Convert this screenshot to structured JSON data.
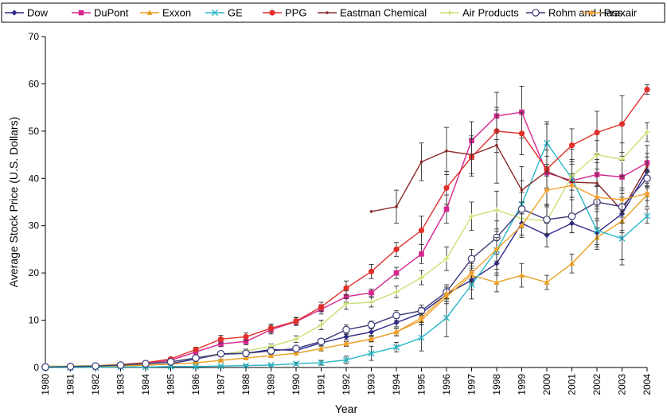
{
  "chart_data": {
    "type": "line",
    "title": "",
    "xlabel": "Year",
    "ylabel": "Average Stock Price (U.S. Dollars)",
    "ylim": [
      0,
      70
    ],
    "yticks": [
      0,
      10,
      20,
      30,
      40,
      50,
      60,
      70
    ],
    "x": [
      1980,
      1981,
      1982,
      1983,
      1984,
      1985,
      1986,
      1987,
      1988,
      1989,
      1990,
      1991,
      1992,
      1993,
      1994,
      1995,
      1996,
      1997,
      1998,
      1999,
      2000,
      2001,
      2002,
      2003,
      2004
    ],
    "legend_position": "top",
    "grid": false,
    "error_bars": true,
    "series": [
      {
        "name": "Dow",
        "color": "#2e2a8c",
        "marker": "diamond",
        "values": [
          0.1,
          0.1,
          0.2,
          0.3,
          0.5,
          0.8,
          1.8,
          2.8,
          3.0,
          3.8,
          3.6,
          5.2,
          6.5,
          7.5,
          9.5,
          11.5,
          15.5,
          18.5,
          22,
          30.5,
          28,
          30.5,
          28.5,
          32.5,
          41.5
        ],
        "errors": [
          0,
          0,
          0,
          0,
          0,
          0.2,
          0.3,
          0.4,
          0.4,
          0.5,
          0.5,
          0.6,
          0.6,
          0.7,
          0.9,
          1.2,
          1.5,
          2.0,
          2.5,
          2.5,
          2.5,
          2.0,
          2.5,
          3.5,
          3.0
        ]
      },
      {
        "name": "DuPont",
        "color": "#d6268f",
        "marker": "square",
        "values": [
          0.2,
          0.2,
          0.3,
          0.5,
          0.9,
          1.5,
          3.3,
          5.0,
          5.5,
          8.0,
          9.7,
          12.3,
          15.0,
          15.8,
          20.0,
          24.0,
          33.5,
          48.0,
          53.2,
          54.0,
          41.2,
          39.5,
          40.8,
          40.3,
          43.3
        ],
        "errors": [
          0,
          0,
          0,
          0,
          0,
          0.2,
          0.5,
          0.6,
          0.7,
          0.9,
          0.8,
          1.0,
          1.2,
          0.8,
          1.2,
          2.0,
          3.0,
          4.0,
          5.0,
          5.5,
          3.5,
          3.5,
          2.5,
          3.5,
          2.0
        ]
      },
      {
        "name": "Exxon",
        "color": "#e8a020",
        "marker": "triangle",
        "values": [
          0.1,
          0.1,
          0.2,
          0.3,
          0.5,
          0.7,
          1.0,
          1.5,
          2.0,
          2.5,
          3.0,
          4.0,
          5.0,
          6.0,
          7.5,
          10.0,
          15.0,
          19.5,
          18.0,
          19.5,
          18.0,
          22.0,
          27.5,
          31.0,
          36.5
        ],
        "errors": [
          0,
          0,
          0,
          0,
          0,
          0.1,
          0.2,
          0.2,
          0.3,
          0.3,
          0.4,
          0.5,
          0.5,
          0.6,
          0.8,
          1.0,
          1.5,
          2.0,
          2.0,
          2.5,
          1.5,
          2.0,
          2.0,
          2.5,
          2.5
        ]
      },
      {
        "name": "GE",
        "color": "#2ab8c8",
        "marker": "x",
        "values": [
          0.0,
          0.0,
          0.0,
          0.1,
          0.1,
          0.2,
          0.2,
          0.3,
          0.4,
          0.5,
          0.8,
          1.0,
          1.6,
          3.0,
          4.3,
          6.3,
          10.5,
          17.5,
          24.8,
          34.5,
          47.5,
          40.0,
          29.0,
          27.3,
          32.0
        ],
        "errors": [
          0,
          0,
          0,
          0,
          0,
          0,
          0.1,
          0.1,
          0.2,
          0.2,
          0.3,
          0.5,
          0.8,
          1.5,
          1.0,
          2.8,
          4.0,
          3.0,
          4.0,
          5.0,
          4.5,
          4.0,
          4.0,
          4.5,
          1.5
        ]
      },
      {
        "name": "PPG",
        "color": "#e0302a",
        "marker": "circle",
        "values": [
          0.2,
          0.3,
          0.4,
          0.7,
          1.0,
          1.8,
          3.8,
          6.0,
          6.5,
          8.3,
          9.8,
          12.8,
          16.8,
          20.3,
          25.0,
          29.0,
          38.0,
          44.5,
          50.0,
          49.5,
          42.0,
          47.0,
          49.7,
          51.5,
          58.8
        ],
        "errors": [
          0,
          0,
          0,
          0,
          0,
          0.3,
          0.5,
          0.8,
          0.8,
          0.9,
          0.8,
          1.0,
          1.5,
          1.5,
          1.5,
          3.0,
          3.5,
          4.0,
          4.5,
          4.5,
          4.0,
          3.5,
          4.5,
          6.0,
          1.0
        ]
      },
      {
        "name": "Eastman Chemical",
        "color": "#8b2a2a",
        "marker": "dot",
        "values": [
          null,
          null,
          null,
          null,
          null,
          null,
          null,
          null,
          null,
          null,
          null,
          null,
          null,
          33.0,
          34.0,
          43.5,
          45.8,
          45.0,
          47.0,
          37.5,
          41.5,
          39.2,
          39.0,
          33.2,
          42.5
        ],
        "errors": [
          0,
          0,
          0,
          0,
          0,
          0,
          0,
          0,
          0,
          0,
          0,
          0,
          0,
          0,
          3.5,
          4.0,
          5.0,
          4.0,
          8.0,
          5.0,
          10.0,
          7.0,
          5.0,
          11.5,
          4.5
        ]
      },
      {
        "name": "Air Products",
        "color": "#c8e070",
        "marker": "plus",
        "values": [
          0.3,
          0.3,
          0.4,
          0.6,
          0.8,
          1.2,
          2.0,
          2.8,
          3.5,
          4.5,
          6.0,
          9.0,
          13.5,
          13.8,
          16.0,
          19.0,
          23.0,
          32.0,
          33.3,
          31.5,
          31.0,
          40.5,
          45.0,
          44.0,
          49.8
        ],
        "errors": [
          0,
          0,
          0,
          0,
          0,
          0.2,
          0.3,
          0.4,
          0.4,
          0.5,
          0.7,
          1.0,
          1.2,
          1.0,
          1.2,
          1.5,
          2.5,
          3.0,
          4.0,
          3.5,
          3.0,
          3.0,
          3.0,
          3.5,
          2.0
        ]
      },
      {
        "name": "Rohm and Hass",
        "color": "#3a3a78",
        "marker": "open-circle",
        "values": [
          0.1,
          0.2,
          0.3,
          0.5,
          0.8,
          1.2,
          2.0,
          2.9,
          3.0,
          3.5,
          4.0,
          5.5,
          8.0,
          9.0,
          11.0,
          12.0,
          16.0,
          23.0,
          27.5,
          33.5,
          31.3,
          32.0,
          35.0,
          34.0,
          40.0
        ],
        "errors": [
          0,
          0,
          0,
          0,
          0,
          0.2,
          0.3,
          0.4,
          0.4,
          0.5,
          0.5,
          0.6,
          1.0,
          0.8,
          1.0,
          1.2,
          1.5,
          2.0,
          3.5,
          3.5,
          3.0,
          3.5,
          3.5,
          3.5,
          2.0
        ]
      },
      {
        "name": "Praxair",
        "color": "#f0a030",
        "marker": "diamond",
        "values": [
          null,
          null,
          null,
          null,
          null,
          null,
          null,
          null,
          null,
          null,
          null,
          null,
          5.0,
          6.0,
          7.5,
          10.5,
          15.5,
          20.0,
          25.0,
          30.0,
          37.5,
          38.5,
          36.0,
          35.5,
          36.8
        ],
        "errors": [
          0,
          0,
          0,
          0,
          0,
          0,
          0,
          0,
          0,
          0,
          0,
          0,
          0.5,
          0.5,
          0.8,
          1.0,
          1.5,
          2.0,
          2.5,
          2.5,
          3.0,
          2.5,
          2.5,
          2.5,
          1.5
        ]
      }
    ]
  }
}
